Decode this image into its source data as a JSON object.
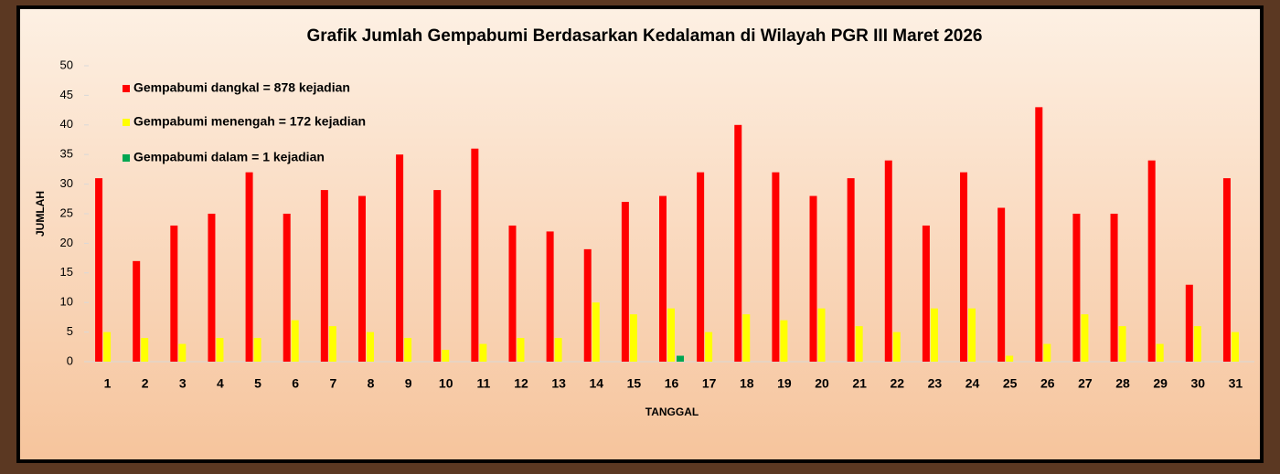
{
  "chart_data": {
    "type": "bar",
    "title": "Grafik Jumlah Gempabumi Berdasarkan Kedalaman di Wilayah PGR III Maret 2026",
    "x_label": "TANGGAL",
    "y_label": "JUMLAH",
    "categories": [
      "1",
      "2",
      "3",
      "4",
      "5",
      "6",
      "7",
      "8",
      "9",
      "10",
      "11",
      "12",
      "13",
      "14",
      "15",
      "16",
      "17",
      "18",
      "19",
      "20",
      "21",
      "22",
      "23",
      "24",
      "25",
      "26",
      "27",
      "28",
      "29",
      "30",
      "31"
    ],
    "series": [
      {
        "name": "Gempabumi dangkal = 878 kejadian",
        "color": "#ff0000",
        "values": [
          31,
          17,
          23,
          25,
          32,
          25,
          29,
          28,
          35,
          29,
          36,
          23,
          22,
          19,
          27,
          28,
          32,
          40,
          32,
          28,
          31,
          34,
          23,
          32,
          26,
          43,
          25,
          25,
          34,
          13,
          31
        ]
      },
      {
        "name": "Gempabumi menengah = 172 kejadian",
        "color": "#ffff00",
        "values": [
          5,
          4,
          3,
          4,
          4,
          7,
          6,
          5,
          4,
          2,
          3,
          4,
          4,
          10,
          8,
          9,
          5,
          8,
          7,
          9,
          6,
          5,
          9,
          9,
          1,
          3,
          8,
          6,
          3,
          6,
          5
        ]
      },
      {
        "name": "Gempabumi dalam =  1 kejadian",
        "color": "#00a651",
        "values": [
          0,
          0,
          0,
          0,
          0,
          0,
          0,
          0,
          0,
          0,
          0,
          0,
          0,
          0,
          0,
          1,
          0,
          0,
          0,
          0,
          0,
          0,
          0,
          0,
          0,
          0,
          0,
          0,
          0,
          0,
          0
        ]
      }
    ],
    "ylim": [
      0,
      50
    ],
    "yticks": [
      0,
      5,
      10,
      15,
      20,
      25,
      30,
      35,
      40,
      45,
      50
    ],
    "grid": false,
    "legend": "upper left"
  }
}
